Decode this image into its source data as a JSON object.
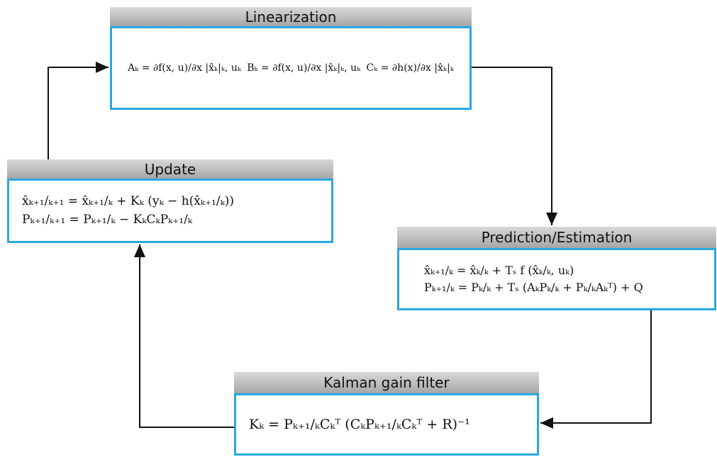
{
  "nodes": [
    {
      "title": "Linearization",
      "equations": [
        "Aₖ = ∂f(x, u)/∂x |x̂ₖ|ₖ, uₖ",
        "Bₖ = ∂f(x, u)/∂x |x̂ₖ|ₖ, uₖ",
        "Cₖ = ∂h(x)/∂x |x̂ₖ|ₖ"
      ]
    },
    {
      "title": "Update",
      "equations": [
        "x̂ₖ₊₁/ₖ₊₁ = x̂ₖ₊₁/ₖ + Kₖ (yₖ − h(x̂ₖ₊₁/ₖ))",
        "Pₖ₊₁/ₖ₊₁ = Pₖ₊₁/ₖ − KₖCₖPₖ₊₁/ₖ"
      ]
    },
    {
      "title": "Prediction/Estimation",
      "equations": [
        "x̂ₖ₊₁/ₖ = x̂ₖ/ₖ + Tₛ f (x̂ₖ/ₖ, uₖ)",
        "Pₖ₊₁/ₖ = Pₖ/ₖ + Tₛ (AₖPₖ/ₖ + Pₖ/ₖAₖᵀ) + Q"
      ]
    },
    {
      "title": "Kalman gain filter",
      "equations": [
        "Kₖ = Pₖ₊₁/ₖCₖᵀ (CₖPₖ₊₁/ₖCₖᵀ + R)⁻¹"
      ]
    }
  ]
}
